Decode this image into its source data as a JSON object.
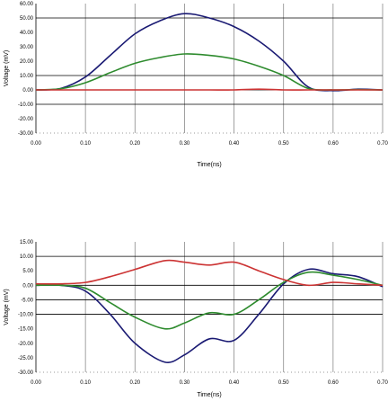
{
  "chart_data": [
    {
      "type": "line",
      "title": "",
      "xlabel": "Time(ns)",
      "ylabel": "Voltage (mV)",
      "xlim": [
        0,
        0.7
      ],
      "ylim": [
        -30,
        60
      ],
      "x_ticks": [
        "0.00",
        "0.10",
        "0.20",
        "0.30",
        "0.40",
        "0.50",
        "0.60",
        "0.70"
      ],
      "y_ticks": [
        "60.00",
        "50.00",
        "40.00",
        "30.00",
        "20.00",
        "10.00",
        "0.00",
        "-10.00",
        "-20.00",
        "-30.00"
      ],
      "y_tick_values": [
        60,
        50,
        40,
        30,
        20,
        10,
        0,
        -10,
        -20,
        -30
      ],
      "grid": "vertical lines at x ticks; horizontal lines at 50, 10, 0, -10; dotted line at -30",
      "legend": "none",
      "x": [
        0.0,
        0.05,
        0.1,
        0.15,
        0.2,
        0.25,
        0.3,
        0.35,
        0.4,
        0.45,
        0.5,
        0.55,
        0.6,
        0.65,
        0.7
      ],
      "series": [
        {
          "color": "#1a1a73",
          "values": [
            0.0,
            1.0,
            9.0,
            24.0,
            39.0,
            48.0,
            53.0,
            50.0,
            44.0,
            34.0,
            20.0,
            2.0,
            -0.5,
            0.5,
            0.0
          ]
        },
        {
          "color": "#2e8b2e",
          "values": [
            0.0,
            0.8,
            5.0,
            12.0,
            18.5,
            22.5,
            25.0,
            24.0,
            21.5,
            16.5,
            10.0,
            1.0,
            0.0,
            0.2,
            0.0
          ]
        },
        {
          "color": "#cc3333",
          "values": [
            0.0,
            0.0,
            0.0,
            0.0,
            0.0,
            0.0,
            0.0,
            0.0,
            0.0,
            0.5,
            0.0,
            0.0,
            0.0,
            0.0,
            0.0
          ]
        }
      ]
    },
    {
      "type": "line",
      "title": "",
      "xlabel": "Time(ns)",
      "ylabel": "Voltage (mV)",
      "xlim": [
        0,
        0.7
      ],
      "ylim": [
        -30,
        15
      ],
      "x_ticks": [
        "0.00",
        "0.10",
        "0.20",
        "0.30",
        "0.40",
        "0.50",
        "0.60",
        "0.70"
      ],
      "y_ticks": [
        "15.00",
        "10.00",
        "5.00",
        "0.00",
        "-5.00",
        "-10.00",
        "-15.00",
        "-20.00",
        "-25.00",
        "-30.00"
      ],
      "y_tick_values": [
        15,
        10,
        5,
        0,
        -5,
        -10,
        -15,
        -20,
        -25,
        -30
      ],
      "grid": "vertical lines at x ticks; horizontal lines at 10, 0, -5, -10; dotted line at -30",
      "legend": "none",
      "x": [
        0.0,
        0.05,
        0.1,
        0.15,
        0.2,
        0.26,
        0.3,
        0.35,
        0.4,
        0.45,
        0.5,
        0.55,
        0.6,
        0.65,
        0.7
      ],
      "series": [
        {
          "color": "#1a1a73",
          "values": [
            0.0,
            0.0,
            -2.0,
            -10.0,
            -20.0,
            -26.5,
            -24.0,
            -18.5,
            -19.0,
            -10.0,
            0.5,
            5.5,
            4.0,
            3.0,
            -0.5
          ]
        },
        {
          "color": "#2e8b2e",
          "values": [
            0.0,
            0.0,
            -1.0,
            -6.0,
            -11.0,
            -15.0,
            -13.0,
            -9.5,
            -10.0,
            -5.0,
            1.0,
            4.5,
            3.5,
            2.0,
            0.0
          ]
        },
        {
          "color": "#cc3333",
          "values": [
            0.5,
            0.5,
            1.0,
            3.0,
            5.5,
            8.5,
            8.0,
            7.0,
            8.0,
            5.0,
            2.0,
            0.0,
            1.0,
            0.5,
            0.0
          ]
        }
      ]
    }
  ]
}
